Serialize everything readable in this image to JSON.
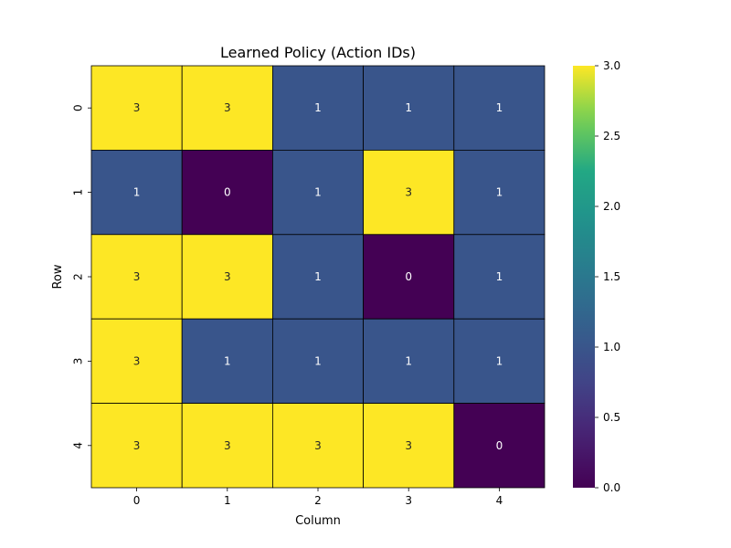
{
  "chart_data": {
    "type": "heatmap",
    "title": "Learned Policy (Action IDs)",
    "xlabel": "Column",
    "ylabel": "Row",
    "x_ticks": [
      "0",
      "1",
      "2",
      "3",
      "4"
    ],
    "y_ticks": [
      "0",
      "1",
      "2",
      "3",
      "4"
    ],
    "values": [
      [
        3,
        3,
        1,
        1,
        1
      ],
      [
        1,
        0,
        1,
        3,
        1
      ],
      [
        3,
        3,
        1,
        0,
        1
      ],
      [
        3,
        1,
        1,
        1,
        1
      ],
      [
        3,
        3,
        3,
        3,
        0
      ]
    ],
    "colormap": "viridis",
    "vmin": 0,
    "vmax": 3,
    "colorbar_ticks": [
      "0.0",
      "0.5",
      "1.0",
      "1.5",
      "2.0",
      "2.5",
      "3.0"
    ],
    "colors": {
      "min": "#440154",
      "max": "#fde725",
      "cell_border": "#000000",
      "text_on_light": "#262626",
      "text_on_dark": "#ffffff"
    },
    "grid": true
  }
}
